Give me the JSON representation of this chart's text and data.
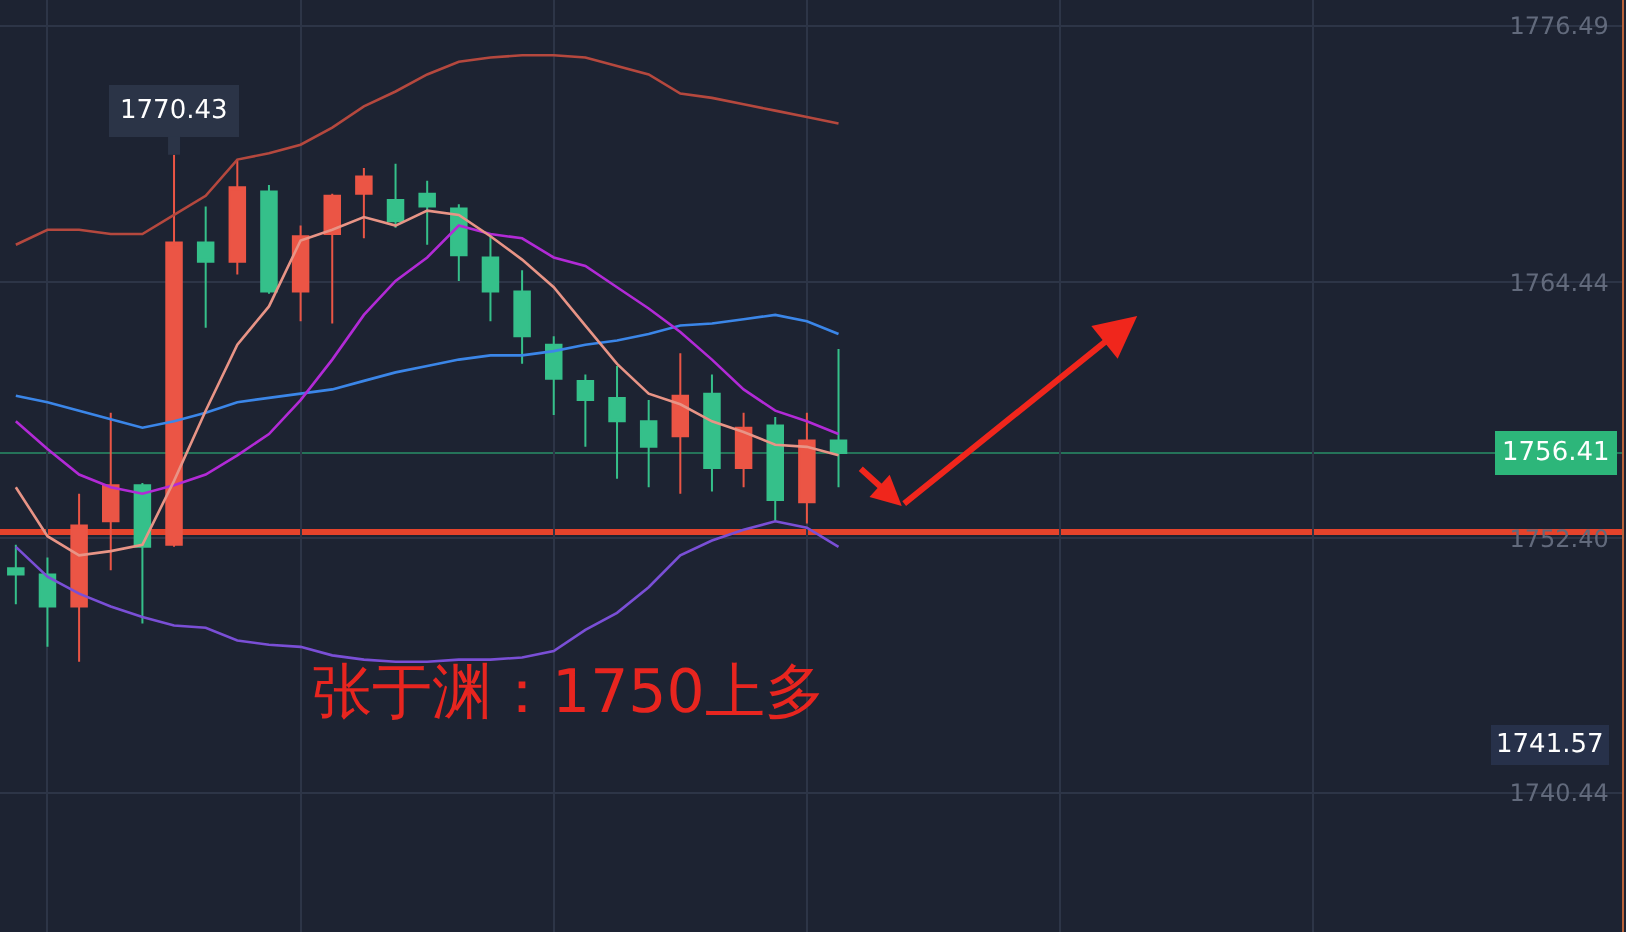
{
  "chart_data": {
    "type": "candlestick",
    "categories": [
      null,
      null,
      null,
      null,
      null,
      null,
      null,
      null,
      null,
      null,
      null,
      null,
      null,
      null,
      null,
      null,
      null,
      null,
      null,
      null,
      null,
      null,
      null,
      null,
      null,
      null,
      null
    ],
    "ohlc": [
      [
        1751.0,
        1752.1,
        1749.3,
        1750.7
      ],
      [
        1750.7,
        1751.5,
        1747.3,
        1749.2
      ],
      [
        1749.2,
        1754.5,
        1746.6,
        1753.0
      ],
      [
        1753.2,
        1758.3,
        1750.9,
        1754.9
      ],
      [
        1754.9,
        1755.0,
        1748.4,
        1752.0
      ],
      [
        1752.1,
        1770.43,
        1752.0,
        1766.3
      ],
      [
        1766.3,
        1768.0,
        1762.3,
        1765.4
      ],
      [
        1765.4,
        1770.2,
        1764.8,
        1768.9
      ],
      [
        1768.7,
        1769.0,
        1763.9,
        1764.0
      ],
      [
        1764.0,
        1767.1,
        1762.6,
        1766.6
      ],
      [
        1766.7,
        1768.6,
        1762.5,
        1768.5
      ],
      [
        1768.6,
        1769.8,
        1766.5,
        1769.4
      ],
      [
        1768.3,
        1770.0,
        1767.0,
        1767.3
      ],
      [
        1768.6,
        1769.2,
        1766.2,
        1768.0
      ],
      [
        1767.9,
        1768.1,
        1764.5,
        1765.7
      ],
      [
        1765.6,
        1766.7,
        1762.6,
        1764.0
      ],
      [
        1764.0,
        1765.0,
        1760.6,
        1761.9
      ],
      [
        1761.5,
        1761.9,
        1758.2,
        1759.9
      ],
      [
        1759.8,
        1760.1,
        1756.7,
        1758.9
      ],
      [
        1759.0,
        1760.5,
        1755.2,
        1757.9
      ],
      [
        1757.9,
        1758.9,
        1754.8,
        1756.7
      ],
      [
        1757.2,
        1761.1,
        1754.5,
        1759.1
      ],
      [
        1759.2,
        1760.1,
        1754.6,
        1755.7
      ],
      [
        1755.7,
        1758.3,
        1754.8,
        1757.6
      ],
      [
        1757.7,
        1758.1,
        1753.2,
        1754.2
      ],
      [
        1754.1,
        1758.3,
        1753.1,
        1757.0
      ],
      [
        1757.0,
        1761.3,
        1754.8,
        1756.41
      ]
    ],
    "colors": [
      "#35c08a",
      "#35c08a",
      "#eb5545",
      "#eb5545",
      "#35c08a",
      "#eb5545",
      "#35c08a",
      "#eb5545",
      "#35c08a",
      "#eb5545",
      "#eb5545",
      "#eb5545",
      "#35c08a",
      "#35c08a",
      "#35c08a",
      "#35c08a",
      "#35c08a",
      "#35c08a",
      "#35c08a",
      "#35c08a",
      "#35c08a",
      "#eb5545",
      "#35c08a",
      "#eb5545",
      "#35c08a",
      "#eb5545",
      "#35c08a"
    ],
    "series": [
      {
        "type": "line",
        "color": "#b5483e",
        "values": [
          1766.2,
          1766.9,
          1766.9,
          1766.7,
          1766.7,
          1767.6,
          1768.5,
          1770.2,
          1770.5,
          1770.9,
          1771.7,
          1772.7,
          1773.4,
          1774.2,
          1774.8,
          1775.0,
          1775.1,
          1775.1,
          1775.0,
          1774.6,
          1774.2,
          1773.3,
          1773.1,
          1772.8,
          1772.5,
          1772.2,
          1771.9
        ]
      },
      {
        "type": "line",
        "color": "#3b86e8",
        "values": [
          1759.1,
          1758.8,
          1758.4,
          1758.0,
          1757.6,
          1757.9,
          1758.3,
          1758.8,
          1759.0,
          1759.2,
          1759.4,
          1759.8,
          1760.2,
          1760.5,
          1760.8,
          1761.0,
          1761.0,
          1761.2,
          1761.5,
          1761.7,
          1762.0,
          1762.4,
          1762.5,
          1762.7,
          1762.9,
          1762.6,
          1762.0
        ]
      },
      {
        "type": "line",
        "color": "#7a4fd6",
        "values": [
          1752.0,
          1750.6,
          1749.8,
          1749.2,
          1748.7,
          1748.3,
          1748.2,
          1747.6,
          1747.4,
          1747.3,
          1746.9,
          1746.7,
          1746.6,
          1746.6,
          1746.7,
          1746.7,
          1746.8,
          1747.1,
          1748.1,
          1748.9,
          1750.1,
          1751.6,
          1752.3,
          1752.8,
          1753.2,
          1752.9,
          1752.0
        ]
      },
      {
        "type": "line",
        "color": "#b22ad6",
        "values": [
          1757.9,
          1756.6,
          1755.4,
          1754.8,
          1754.5,
          1754.9,
          1755.4,
          1756.3,
          1757.3,
          1758.9,
          1760.8,
          1762.9,
          1764.5,
          1765.6,
          1767.1,
          1766.7,
          1766.5,
          1765.6,
          1765.2,
          1764.2,
          1763.2,
          1762.1,
          1760.8,
          1759.4,
          1758.4,
          1757.9,
          1757.3
        ]
      },
      {
        "type": "line",
        "color": "#e89486",
        "values": [
          1754.8,
          1752.5,
          1751.6,
          1751.8,
          1752.1,
          1755.1,
          1758.4,
          1761.5,
          1763.3,
          1766.4,
          1766.9,
          1767.5,
          1767.1,
          1767.8,
          1767.6,
          1766.6,
          1765.5,
          1764.2,
          1762.4,
          1760.6,
          1759.2,
          1758.7,
          1757.9,
          1757.4,
          1756.8,
          1756.7,
          1756.3
        ]
      }
    ],
    "ylim": [
      1733.9,
      1777.7
    ],
    "yticks": [
      1776.49,
      1764.44,
      {
        "value": 1752.4,
        "label": "1752.40"
      },
      1740.44
    ],
    "tick_labels": "y",
    "grid": true,
    "line_style": "solid",
    "ref_lines": [
      {
        "axis": "y",
        "value": 1752.7,
        "color": "#e5432b"
      },
      {
        "axis": "y",
        "value": 1756.41,
        "label": "1756.41",
        "color": "#2db67a"
      }
    ],
    "annotations": [
      {
        "text": "1770.43",
        "y": 1770.43
      },
      "1741.57",
      "张于渊：1750上多"
    ]
  }
}
